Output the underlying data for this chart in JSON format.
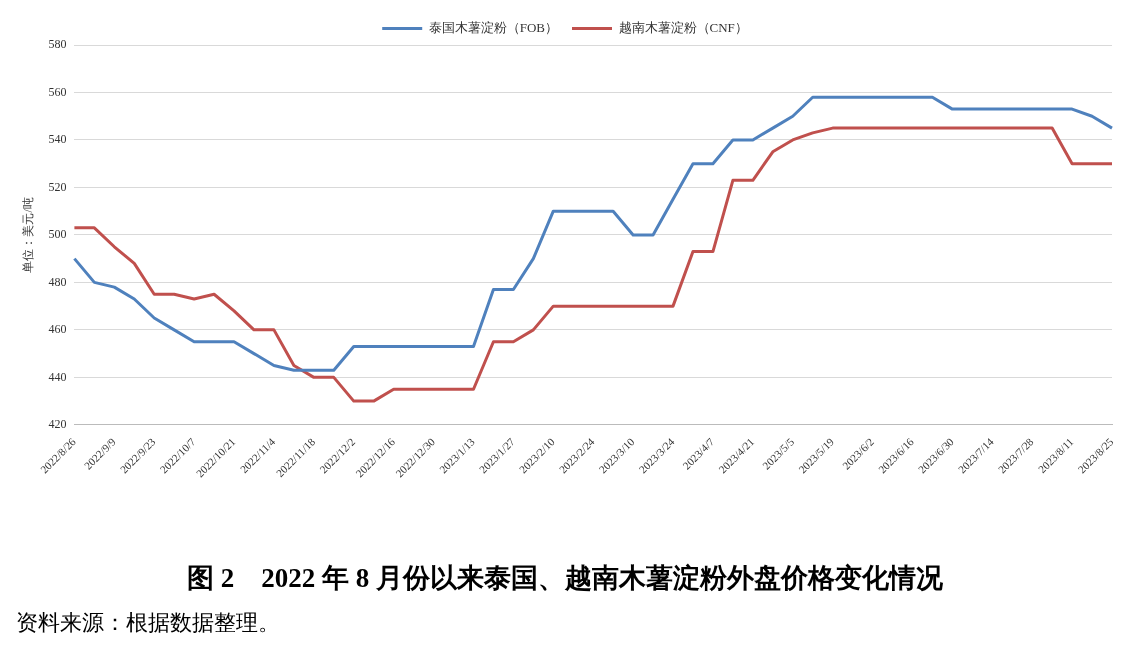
{
  "chart_data": {
    "type": "line",
    "title": "图 2　2022 年 8 月份以来泰国、越南木薯淀粉外盘价格变化情况",
    "ylabel": "单位：美元/吨",
    "categories": [
      "2022/8/26",
      null,
      "2022/9/9",
      null,
      "2022/9/23",
      null,
      "2022/10/7",
      null,
      "2022/10/21",
      null,
      "2022/11/4",
      null,
      "2022/11/18",
      null,
      "2022/12/2",
      null,
      "2022/12/16",
      null,
      "2022/12/30",
      null,
      "2023/1/13",
      null,
      "2023/1/27",
      null,
      "2023/2/10",
      null,
      "2023/2/24",
      null,
      "2023/3/10",
      null,
      "2023/3/24",
      null,
      "2023/4/7",
      null,
      "2023/4/21",
      null,
      "2023/5/5",
      null,
      "2023/5/19",
      null,
      "2023/6/2",
      null,
      "2023/6/16",
      null,
      "2023/6/30",
      null,
      "2023/7/14",
      null,
      "2023/7/28",
      null,
      "2023/8/11",
      null,
      "2023/8/25"
    ],
    "series": [
      {
        "name": "泰国木薯淀粉（FOB）",
        "color": "#4f81bd",
        "values": [
          490,
          480,
          478,
          473,
          465,
          460,
          455,
          455,
          455,
          450,
          445,
          443,
          443,
          443,
          453,
          453,
          453,
          453,
          453,
          453,
          453,
          477,
          477,
          490,
          510,
          510,
          510,
          510,
          500,
          500,
          515,
          530,
          530,
          540,
          540,
          545,
          550,
          558,
          558,
          558,
          558,
          558,
          558,
          558,
          553,
          553,
          553,
          553,
          553,
          553,
          553,
          550,
          545
        ]
      },
      {
        "name": "越南木薯淀粉（CNF）",
        "color": "#c0504d",
        "values": [
          503,
          503,
          495,
          488,
          475,
          475,
          473,
          475,
          468,
          460,
          460,
          445,
          440,
          440,
          430,
          430,
          435,
          435,
          435,
          435,
          435,
          455,
          455,
          460,
          470,
          470,
          470,
          470,
          470,
          470,
          470,
          493,
          493,
          523,
          523,
          535,
          540,
          543,
          545,
          545,
          545,
          545,
          545,
          545,
          545,
          545,
          545,
          545,
          545,
          545,
          530,
          530,
          530
        ]
      }
    ],
    "ylim": [
      420,
      580
    ],
    "yticks": [
      420,
      440,
      460,
      480,
      500,
      520,
      540,
      560,
      580
    ],
    "grid": "y",
    "legend": "top",
    "marker": "none",
    "line_style": "solid",
    "annotations": [
      "资料来源：根据数据整理。"
    ]
  }
}
